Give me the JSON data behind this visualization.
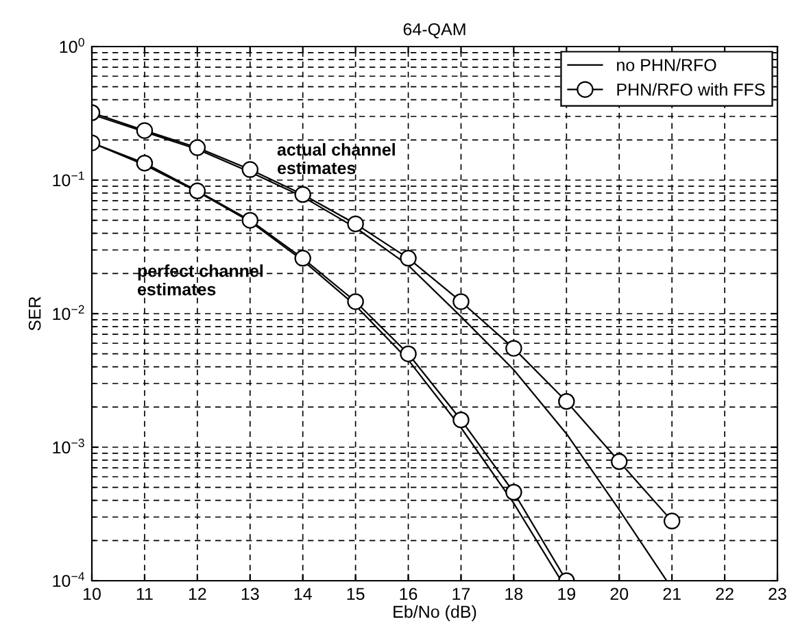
{
  "chart_data": {
    "type": "line",
    "title": "64-QAM",
    "xlabel": "Eb/No (dB)",
    "ylabel": "SER",
    "series": [
      {
        "name": "no PHN/RFO",
        "color": "#000000",
        "marker": "none",
        "x": [
          10,
          11,
          12,
          13,
          14,
          15,
          16,
          17,
          18,
          19,
          20,
          20.9
        ],
        "values": [
          0.31,
          0.23,
          0.17,
          0.115,
          0.075,
          0.044,
          0.023,
          0.0095,
          0.0038,
          0.00126,
          0.00034,
          0.0001
        ]
      },
      {
        "name": "PHN/RFO with FFS",
        "color": "#000000",
        "marker": "circle",
        "x": [
          10,
          11,
          12,
          13,
          14,
          15,
          16,
          17,
          18,
          19,
          20,
          21
        ],
        "values": [
          0.32,
          0.235,
          0.175,
          0.12,
          0.078,
          0.047,
          0.026,
          0.0123,
          0.0055,
          0.0022,
          0.00078,
          0.00028
        ]
      },
      {
        "color": "#000000",
        "marker": "none",
        "x": [
          10,
          11,
          12,
          13,
          14,
          15,
          16,
          17,
          18,
          18.9
        ],
        "values": [
          0.19,
          0.13,
          0.082,
          0.049,
          0.025,
          0.0115,
          0.0045,
          0.0014,
          0.00038,
          0.0001
        ]
      },
      {
        "color": "#000000",
        "marker": "circle",
        "x": [
          10,
          11,
          12,
          13,
          14,
          15,
          16,
          17,
          18,
          19
        ],
        "values": [
          0.19,
          0.134,
          0.083,
          0.05,
          0.026,
          0.0123,
          0.005,
          0.0016,
          0.00046,
          0.0001
        ]
      }
    ],
    "annotations": [
      "actual channel\nestimates",
      "perfect channel\nestimates"
    ],
    "xlim": [
      10,
      23
    ],
    "xticks": [
      10,
      11,
      12,
      13,
      14,
      15,
      16,
      17,
      18,
      19,
      20,
      21,
      22,
      23
    ],
    "ylim": [
      0.0001,
      1
    ],
    "yticks": [
      {
        "value": 0.0001,
        "label": "10$^{−4}$"
      },
      {
        "value": 0.001,
        "label": "10$^{−3}$"
      },
      {
        "value": 0.01,
        "label": "10$^{−2}$"
      },
      {
        "value": 0.1,
        "label": "10$^{−1}$"
      },
      {
        "value": 1,
        "label": "10$^{0}$"
      }
    ],
    "log": "y",
    "grid": true,
    "legend": "top right",
    "line_style": "solid"
  }
}
